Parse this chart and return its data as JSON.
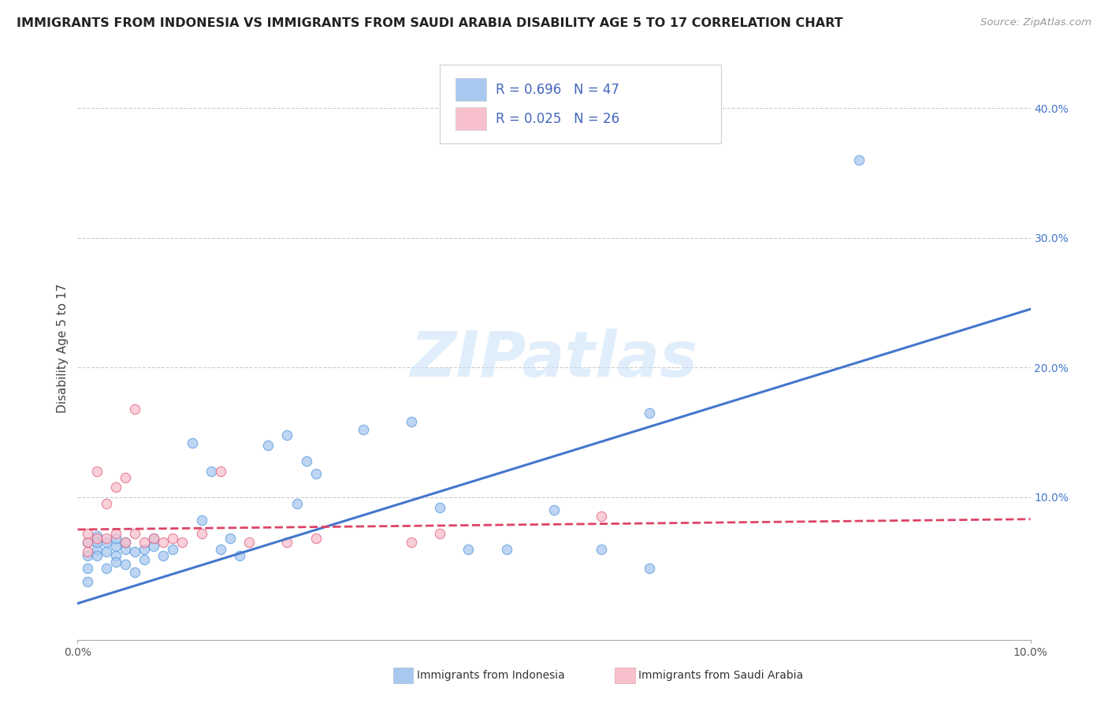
{
  "title": "IMMIGRANTS FROM INDONESIA VS IMMIGRANTS FROM SAUDI ARABIA DISABILITY AGE 5 TO 17 CORRELATION CHART",
  "source": "Source: ZipAtlas.com",
  "ylabel": "Disability Age 5 to 17",
  "xlim": [
    0.0,
    0.1
  ],
  "ylim": [
    -0.01,
    0.44
  ],
  "y_ticks": [
    0.1,
    0.2,
    0.3,
    0.4
  ],
  "y_tick_labels": [
    "10.0%",
    "20.0%",
    "30.0%",
    "40.0%"
  ],
  "watermark_text": "ZIPatlas",
  "legend_r1": "R = 0.696",
  "legend_n1": "N = 47",
  "legend_r2": "R = 0.025",
  "legend_n2": "N = 26",
  "color_indonesia_fill": "#a8c8f0",
  "color_indonesia_edge": "#5599dd",
  "color_saudi_fill": "#f8c0cc",
  "color_saudi_edge": "#e06080",
  "color_line_indonesia": "#4477cc",
  "color_line_saudi": "#dd4466",
  "background": "#ffffff",
  "grid_color": "#cccccc",
  "legend_text_color": "#4466bb",
  "indonesia_scatter_x": [
    0.001,
    0.001,
    0.001,
    0.001,
    0.002,
    0.002,
    0.002,
    0.002,
    0.003,
    0.003,
    0.003,
    0.004,
    0.004,
    0.004,
    0.004,
    0.005,
    0.005,
    0.005,
    0.006,
    0.006,
    0.007,
    0.007,
    0.008,
    0.008,
    0.009,
    0.01,
    0.012,
    0.013,
    0.014,
    0.015,
    0.016,
    0.017,
    0.02,
    0.022,
    0.023,
    0.024,
    0.025,
    0.03,
    0.035,
    0.038,
    0.041,
    0.045,
    0.05,
    0.055,
    0.06,
    0.082,
    0.06
  ],
  "indonesia_scatter_y": [
    0.065,
    0.055,
    0.045,
    0.035,
    0.06,
    0.07,
    0.055,
    0.065,
    0.058,
    0.065,
    0.045,
    0.062,
    0.055,
    0.068,
    0.05,
    0.06,
    0.048,
    0.065,
    0.058,
    0.042,
    0.06,
    0.052,
    0.068,
    0.062,
    0.055,
    0.06,
    0.142,
    0.082,
    0.12,
    0.06,
    0.068,
    0.055,
    0.14,
    0.148,
    0.095,
    0.128,
    0.118,
    0.152,
    0.158,
    0.092,
    0.06,
    0.06,
    0.09,
    0.06,
    0.045,
    0.36,
    0.165
  ],
  "saudi_scatter_x": [
    0.001,
    0.001,
    0.001,
    0.002,
    0.002,
    0.003,
    0.003,
    0.004,
    0.004,
    0.005,
    0.005,
    0.006,
    0.006,
    0.007,
    0.008,
    0.009,
    0.01,
    0.011,
    0.013,
    0.015,
    0.018,
    0.022,
    0.025,
    0.035,
    0.038,
    0.055
  ],
  "saudi_scatter_y": [
    0.065,
    0.072,
    0.058,
    0.068,
    0.12,
    0.068,
    0.095,
    0.072,
    0.108,
    0.065,
    0.115,
    0.072,
    0.168,
    0.065,
    0.068,
    0.065,
    0.068,
    0.065,
    0.072,
    0.12,
    0.065,
    0.065,
    0.068,
    0.065,
    0.072,
    0.085
  ],
  "indonesia_line_x": [
    0.0,
    0.1
  ],
  "indonesia_line_y": [
    0.018,
    0.245
  ],
  "saudi_line_x": [
    0.0,
    0.1
  ],
  "saudi_line_y": [
    0.075,
    0.083
  ]
}
